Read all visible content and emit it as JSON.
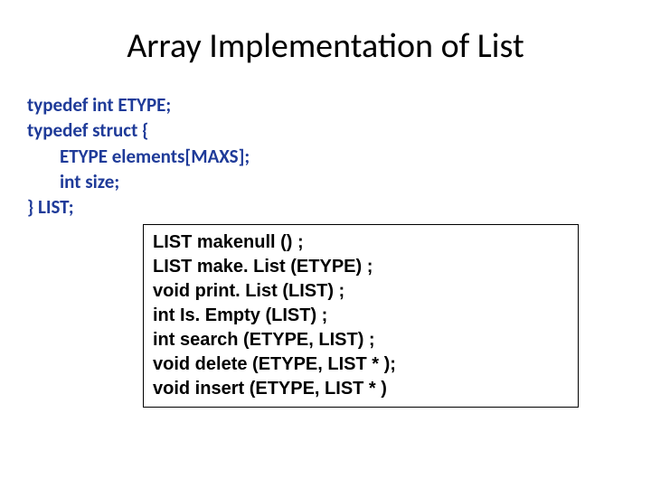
{
  "slide": {
    "title": "Array Implementation of List",
    "typedef": {
      "line1": "typedef int ETYPE;",
      "line2": "typedef struct {",
      "line3": "ETYPE elements[MAXS];",
      "line4": "int size;",
      "line5": "} LIST;"
    },
    "functions": {
      "f1": "LIST makenull () ;",
      "f2": "LIST make. List (ETYPE) ;",
      "f3": "void print. List (LIST) ;",
      "f4": "int Is. Empty (LIST) ;",
      "f5": "int search (ETYPE, LIST) ;",
      "f6": "void delete (ETYPE, LIST * );",
      "f7": "void insert (ETYPE, LIST * )"
    },
    "colors": {
      "title_color": "#000000",
      "typedef_color": "#1f3b99",
      "func_color": "#000000",
      "border_color": "#000000",
      "background": "#ffffff"
    },
    "typography": {
      "title_fontsize": 38,
      "typedef_fontsize": 21,
      "func_fontsize": 20
    }
  }
}
